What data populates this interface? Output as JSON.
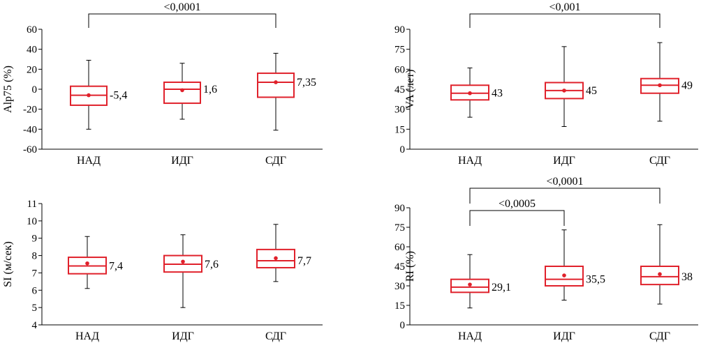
{
  "colors": {
    "box": "#e0212b",
    "whisker": "#000000",
    "axis": "#000000"
  },
  "chart_data": [
    {
      "type": "box",
      "ylabel": "Alp75 (%)",
      "categories": [
        "НАД",
        "ИДГ",
        "СДГ"
      ],
      "ylim": [
        -60,
        60
      ],
      "yticks": [
        -60,
        -40,
        -20,
        0,
        20,
        40,
        60
      ],
      "ytick_labels": [
        "-60",
        "-40",
        "-20",
        "0",
        "20",
        "40",
        "60"
      ],
      "boxes": [
        {
          "category": "НАД",
          "min": -40,
          "q1": -16,
          "median": -6,
          "q3": 3,
          "max": 29,
          "mean": -6,
          "label": "-5,4"
        },
        {
          "category": "ИДГ",
          "min": -30,
          "q1": -14,
          "median": 0,
          "q3": 7,
          "max": 26,
          "mean": -1,
          "label": "1,6"
        },
        {
          "category": "СДГ",
          "min": -41,
          "q1": -8,
          "median": 7,
          "q3": 16,
          "max": 36,
          "mean": 7,
          "label": "7,35"
        }
      ],
      "significance": [
        {
          "from": 0,
          "to": 2,
          "label": "<0,0001",
          "level": 0
        }
      ]
    },
    {
      "type": "box",
      "ylabel": "VA (лет)",
      "categories": [
        "НАД",
        "ИДГ",
        "СДГ"
      ],
      "ylim": [
        0,
        90
      ],
      "yticks": [
        0,
        15,
        30,
        45,
        60,
        75,
        90
      ],
      "ytick_labels": [
        "0",
        "15",
        "30",
        "45",
        "60",
        "75",
        "90"
      ],
      "boxes": [
        {
          "category": "НАД",
          "min": 24,
          "q1": 37,
          "median": 42,
          "q3": 48,
          "max": 61,
          "mean": 42,
          "label": "43"
        },
        {
          "category": "ИДГ",
          "min": 17,
          "q1": 38,
          "median": 44,
          "q3": 50,
          "max": 77,
          "mean": 44,
          "label": "45"
        },
        {
          "category": "СДГ",
          "min": 21,
          "q1": 42,
          "median": 48,
          "q3": 53,
          "max": 80,
          "mean": 48,
          "label": "49"
        }
      ],
      "significance": [
        {
          "from": 0,
          "to": 2,
          "label": "<0,001",
          "level": 0
        }
      ]
    },
    {
      "type": "box",
      "ylabel": "SI (м/сек)",
      "categories": [
        "НАД",
        "ИДГ",
        "СДГ"
      ],
      "ylim": [
        4,
        11
      ],
      "yticks": [
        4,
        5,
        6,
        7,
        8,
        9,
        10,
        11
      ],
      "ytick_labels": [
        "4",
        "5",
        "6",
        "7",
        "8",
        "9",
        "10",
        "11"
      ],
      "boxes": [
        {
          "category": "НАД",
          "min": 6.1,
          "q1": 6.95,
          "median": 7.4,
          "q3": 7.9,
          "max": 9.1,
          "mean": 7.55,
          "label": "7,4"
        },
        {
          "category": "ИДГ",
          "min": 5.0,
          "q1": 7.05,
          "median": 7.5,
          "q3": 8.0,
          "max": 9.2,
          "mean": 7.65,
          "label": "7,6"
        },
        {
          "category": "СДГ",
          "min": 6.5,
          "q1": 7.3,
          "median": 7.7,
          "q3": 8.35,
          "max": 9.8,
          "mean": 7.85,
          "label": "7,7"
        }
      ],
      "significance": []
    },
    {
      "type": "box",
      "ylabel": "RI (%)",
      "categories": [
        "НАД",
        "ИДГ",
        "СДГ"
      ],
      "ylim": [
        0,
        90
      ],
      "yticks": [
        0,
        15,
        30,
        45,
        60,
        75,
        90
      ],
      "ytick_labels": [
        "0",
        "15",
        "30",
        "45",
        "60",
        "75",
        "90"
      ],
      "boxes": [
        {
          "category": "НАД",
          "min": 13,
          "q1": 25,
          "median": 29,
          "q3": 35,
          "max": 54,
          "mean": 31,
          "label": "29,1"
        },
        {
          "category": "ИДГ",
          "min": 19,
          "q1": 30,
          "median": 35,
          "q3": 45,
          "max": 73,
          "mean": 38,
          "label": "35,5"
        },
        {
          "category": "СДГ",
          "min": 16,
          "q1": 31,
          "median": 37,
          "q3": 45,
          "max": 77,
          "mean": 39,
          "label": "38"
        }
      ],
      "significance": [
        {
          "from": 0,
          "to": 1,
          "label": "<0,0005",
          "level": 0
        },
        {
          "from": 0,
          "to": 2,
          "label": "<0,0001",
          "level": 1
        }
      ]
    }
  ]
}
